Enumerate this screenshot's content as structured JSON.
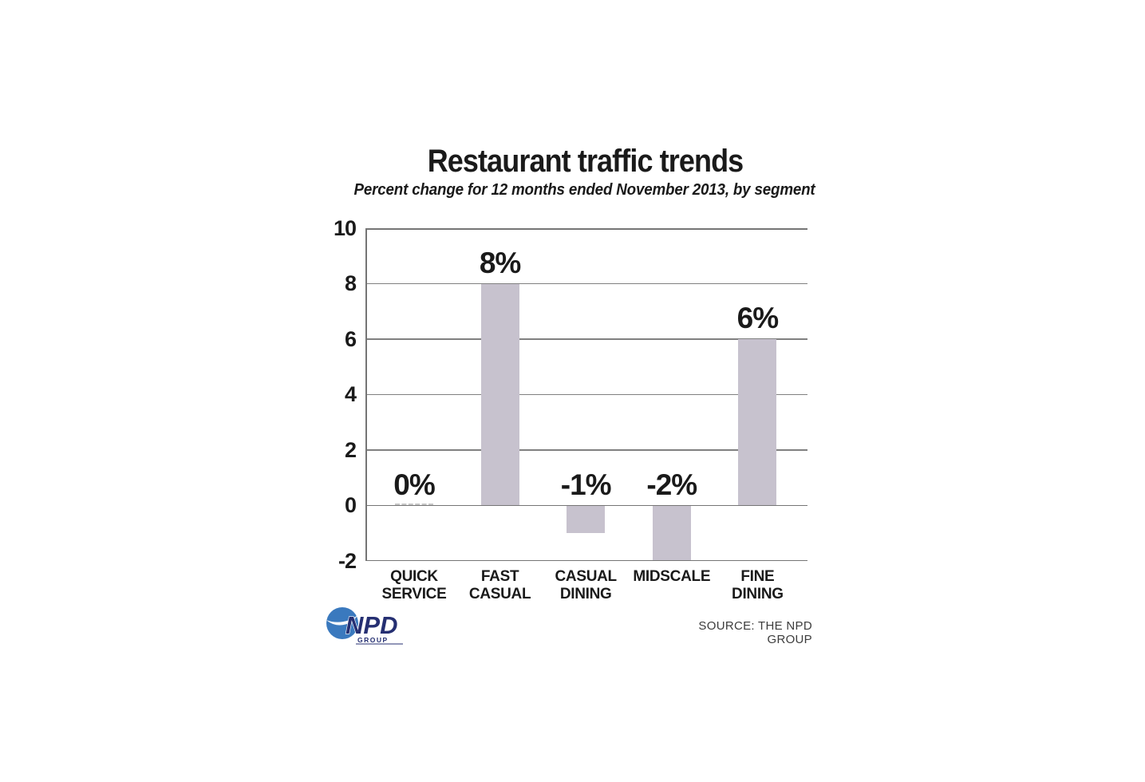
{
  "source": "SOURCE: THE NPD GROUP",
  "logo": {
    "text": "NPD",
    "subtext": "GROUP"
  },
  "colors": {
    "bar": "#c7c2ce",
    "grid": "#808080",
    "frame": "#757575",
    "label_text": "#1a1a1a",
    "zero_dash": "#c6c6c6",
    "source_text": "#3c3c3c",
    "logo_blue": "#3a79be",
    "logo_navy": "#252f72"
  },
  "chart_data": {
    "type": "bar",
    "title": "Restaurant traffic trends",
    "subtitle": "Percent change for 12 months ended November 2013, by segment",
    "categories": [
      "QUICK\nSERVICE",
      "FAST\nCASUAL",
      "CASUAL\nDINING",
      "MIDSCALE",
      "FINE\nDINING"
    ],
    "values": [
      0,
      8,
      -1,
      -2,
      6
    ],
    "bar_labels": [
      "0%",
      "8%",
      "-1%",
      "-2%",
      "6%"
    ],
    "ylim": [
      -2,
      10
    ],
    "yticks": [
      10,
      8,
      6,
      4,
      2,
      0,
      -2
    ],
    "grid": true,
    "legend": false
  }
}
